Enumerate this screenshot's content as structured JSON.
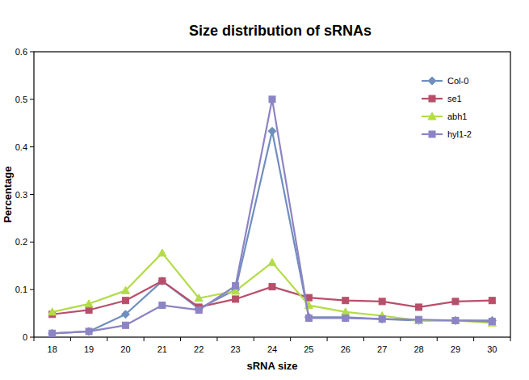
{
  "chart_data": {
    "type": "line",
    "title": "Size distribution of sRNAs",
    "x_label": "sRNA size",
    "y_label": "Percentage",
    "categories": [
      18,
      19,
      20,
      21,
      22,
      23,
      24,
      25,
      26,
      27,
      28,
      29,
      30
    ],
    "series": [
      {
        "name": "Col-0",
        "color": "#6f8fbf",
        "marker": "diamond",
        "values": [
          0.008,
          0.012,
          0.048,
          0.118,
          0.06,
          0.1,
          0.433,
          0.042,
          0.042,
          0.038,
          0.035,
          0.035,
          0.035
        ]
      },
      {
        "name": "se1",
        "color": "#b84f6a",
        "marker": "square",
        "values": [
          0.048,
          0.057,
          0.077,
          0.118,
          0.063,
          0.08,
          0.106,
          0.083,
          0.077,
          0.075,
          0.063,
          0.075,
          0.077
        ]
      },
      {
        "name": "abh1",
        "color": "#b3dc48",
        "marker": "triangle",
        "values": [
          0.053,
          0.07,
          0.098,
          0.177,
          0.082,
          0.097,
          0.157,
          0.067,
          0.053,
          0.045,
          0.035,
          0.035,
          0.03
        ]
      },
      {
        "name": "hyl1-2",
        "color": "#8c84c4",
        "marker": "square",
        "values": [
          0.008,
          0.012,
          0.025,
          0.067,
          0.057,
          0.108,
          0.5,
          0.04,
          0.04,
          0.038,
          0.037,
          0.035,
          0.033
        ]
      }
    ],
    "ylim": [
      0,
      0.6
    ],
    "yticks": [
      0,
      0.1,
      0.2,
      0.3,
      0.4,
      0.5,
      0.6
    ],
    "grid": false,
    "legend": "top-right"
  }
}
